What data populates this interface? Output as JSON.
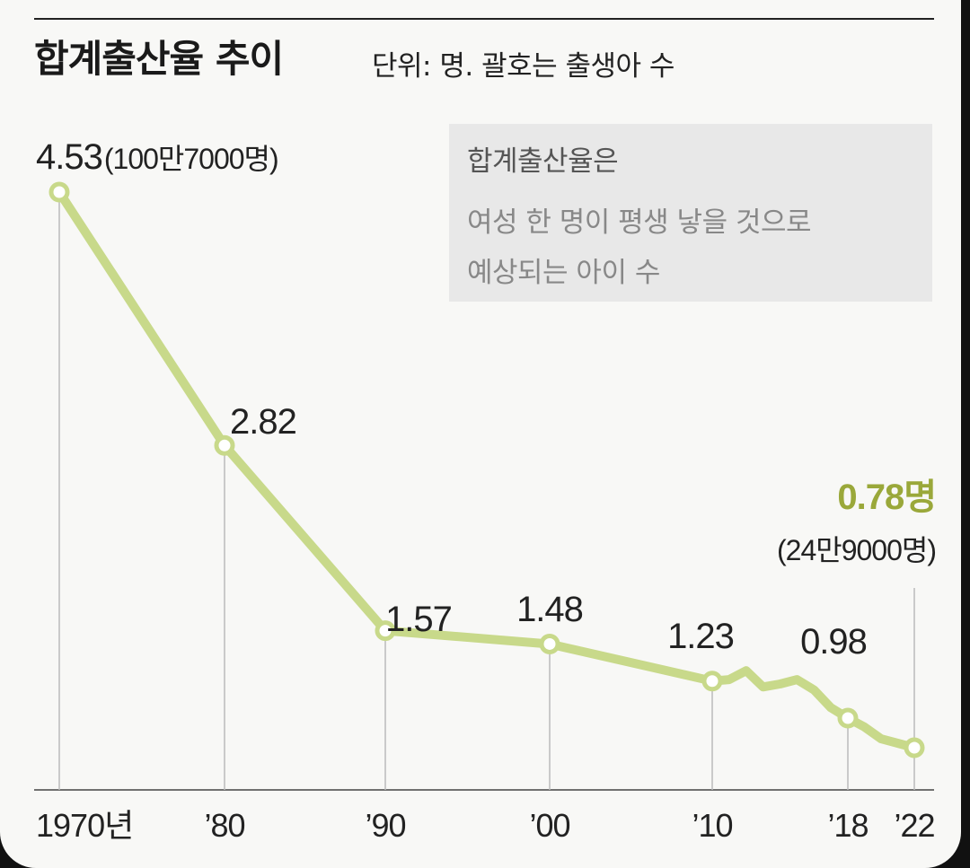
{
  "header": {
    "title": "합계출산율 추이",
    "unit_note": "단위: 명. 괄호는 출생아 수"
  },
  "note_box": {
    "line1": "합계출산율은",
    "line2": "여성 한 명이 평생 낳을 것으로",
    "line3": "예상되는 아이 수"
  },
  "colors": {
    "line": "#c8d98a",
    "point_fill": "#ffffff",
    "highlight": "#9aa83a",
    "grid": "#bbbbbb"
  },
  "chart_data": {
    "type": "line",
    "title": "합계출산율 추이",
    "x_tick_labels": [
      "1970년",
      "’80",
      "’90",
      "’00",
      "’10",
      "’18",
      "’22"
    ],
    "x": [
      1970,
      1980,
      1990,
      2000,
      2010,
      2011,
      2012,
      2013,
      2014,
      2015,
      2016,
      2017,
      2018,
      2019,
      2020,
      2021,
      2022
    ],
    "values": [
      4.53,
      2.82,
      1.57,
      1.48,
      1.23,
      1.24,
      1.3,
      1.19,
      1.21,
      1.24,
      1.17,
      1.05,
      0.98,
      0.92,
      0.84,
      0.81,
      0.78
    ],
    "labeled_points": [
      {
        "x": 1970,
        "label": "4.53",
        "sublabel": "(100만7000명)"
      },
      {
        "x": 1980,
        "label": "2.82",
        "sublabel": ""
      },
      {
        "x": 1990,
        "label": "1.57",
        "sublabel": ""
      },
      {
        "x": 2000,
        "label": "1.48",
        "sublabel": ""
      },
      {
        "x": 2010,
        "label": "1.23",
        "sublabel": ""
      },
      {
        "x": 2018,
        "label": "0.98",
        "sublabel": ""
      },
      {
        "x": 2022,
        "label": "0.78명",
        "sublabel": "(24만9000명)"
      }
    ],
    "ylim": [
      0,
      5
    ],
    "xlabel": "",
    "ylabel": "",
    "grid": false,
    "legend": "none"
  }
}
